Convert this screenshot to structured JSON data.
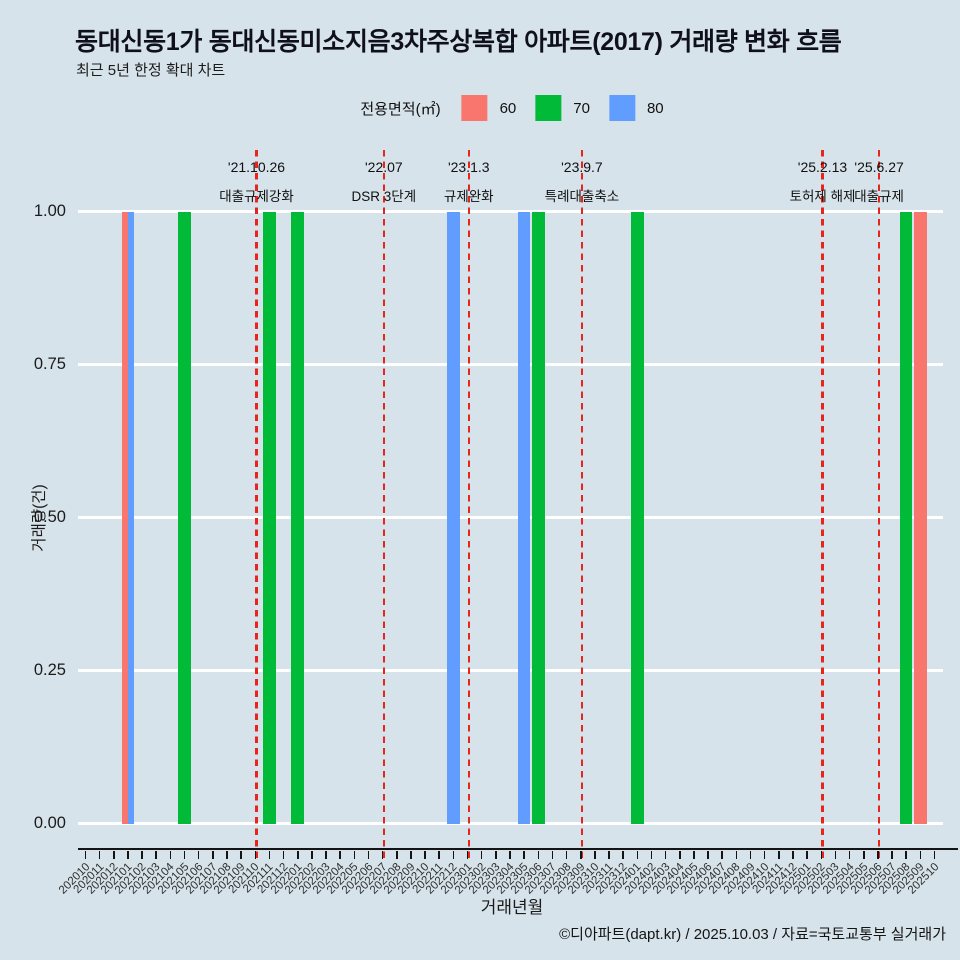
{
  "header": {
    "title": "동대신동1가 동대신동미소지음3차주상복합 아파트(2017) 거래량 변화 흐름",
    "subtitle": "최근 5년 한정 확대 차트"
  },
  "legend": {
    "label": "전용면적(㎡)",
    "items": [
      {
        "label": "60",
        "color": "#F8766D"
      },
      {
        "label": "70",
        "color": "#00BA38"
      },
      {
        "label": "80",
        "color": "#619CFF"
      }
    ]
  },
  "chart_data": {
    "type": "bar",
    "title": "동대신동1가 동대신동미소지음3차주상복합 아파트(2017) 거래량 변화 흐름",
    "subtitle": "최근 5년 한정 확대 차트",
    "xlabel": "거래년월",
    "ylabel": "거래량(건)",
    "ylim": [
      0,
      1
    ],
    "ytick_labels": [
      "0.00",
      "0.25",
      "0.50",
      "0.75",
      "1.00"
    ],
    "ytick_values": [
      0,
      0.25,
      0.5,
      0.75,
      1
    ],
    "grid": "horizontal-white",
    "legend_position": "top",
    "x_categories": [
      "202010",
      "202011",
      "202012",
      "202101",
      "202102",
      "202103",
      "202104",
      "202105",
      "202106",
      "202107",
      "202108",
      "202109",
      "202110",
      "202111",
      "202112",
      "202201",
      "202202",
      "202203",
      "202204",
      "202205",
      "202206",
      "202207",
      "202208",
      "202209",
      "202210",
      "202211",
      "202212",
      "202301",
      "202302",
      "202303",
      "202304",
      "202305",
      "202306",
      "202307",
      "202308",
      "202309",
      "202310",
      "202311",
      "202312",
      "202401",
      "202402",
      "202403",
      "202404",
      "202405",
      "202406",
      "202407",
      "202408",
      "202409",
      "202410",
      "202411",
      "202412",
      "202501",
      "202502",
      "202503",
      "202504",
      "202505",
      "202506",
      "202507",
      "202508",
      "202509",
      "202510"
    ],
    "series": [
      {
        "name": "60",
        "color": "#F8766D",
        "points": [
          {
            "x": "202101",
            "y": 1
          },
          {
            "x": "202509",
            "y": 1
          }
        ]
      },
      {
        "name": "70",
        "color": "#00BA38",
        "points": [
          {
            "x": "202105",
            "y": 1
          },
          {
            "x": "202111",
            "y": 1
          },
          {
            "x": "202201",
            "y": 1
          },
          {
            "x": "202306",
            "y": 1
          },
          {
            "x": "202401",
            "y": 1
          },
          {
            "x": "202508",
            "y": 1
          }
        ]
      },
      {
        "name": "80",
        "color": "#619CFF",
        "points": [
          {
            "x": "202101",
            "y": 1
          },
          {
            "x": "202212",
            "y": 1
          },
          {
            "x": "202305",
            "y": 1
          }
        ]
      }
    ],
    "annotations": [
      {
        "x": "202110",
        "date": "'21.10.26",
        "label": "대출규제강화"
      },
      {
        "x": "202207",
        "date": "'22.07",
        "label": "DSR 3단계"
      },
      {
        "x": "202301",
        "date": "'23.1.3",
        "label": "규제완화"
      },
      {
        "x": "202309",
        "date": "'23.9.7",
        "label": "특례대출축소"
      },
      {
        "x": "202502",
        "date": "'25.2.13",
        "label": "토허제 해제"
      },
      {
        "x": "202506",
        "date": "'25.6.27",
        "label": "대출규제"
      }
    ],
    "annotation_line_color": "#e8251c"
  },
  "footer": {
    "credit": "©디아파트(dapt.kr) / 2025.10.03 / 자료=국토교통부 실거래가"
  }
}
